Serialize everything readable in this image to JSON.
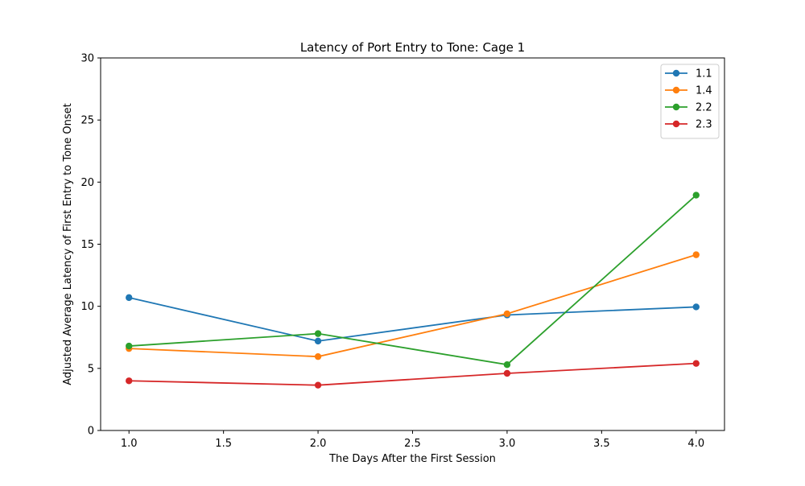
{
  "chart_data": {
    "type": "line",
    "title": "Latency of Port Entry to Tone: Cage 1",
    "xlabel": "The Days After the First Session",
    "ylabel": "Adjusted Average Latency of First Entry to Tone Onset",
    "xlim": [
      0.85,
      4.15
    ],
    "ylim": [
      0,
      30
    ],
    "xticks": [
      "1.0",
      "1.5",
      "2.0",
      "2.5",
      "3.0",
      "3.5",
      "4.0"
    ],
    "yticks": [
      "0",
      "5",
      "10",
      "15",
      "20",
      "25",
      "30"
    ],
    "grid": false,
    "legend_position": "top-right",
    "x": [
      1.0,
      2.0,
      3.0,
      4.0
    ],
    "series": [
      {
        "name": "1.1",
        "color": "#1f77b4",
        "values": [
          10.7,
          7.2,
          9.3,
          9.95
        ]
      },
      {
        "name": "1.4",
        "color": "#ff7f0e",
        "values": [
          6.6,
          5.95,
          9.4,
          14.15
        ]
      },
      {
        "name": "2.2",
        "color": "#2ca02c",
        "values": [
          6.8,
          7.8,
          5.3,
          18.95
        ]
      },
      {
        "name": "2.3",
        "color": "#d62728",
        "values": [
          4.0,
          3.65,
          4.6,
          5.4
        ]
      }
    ]
  }
}
